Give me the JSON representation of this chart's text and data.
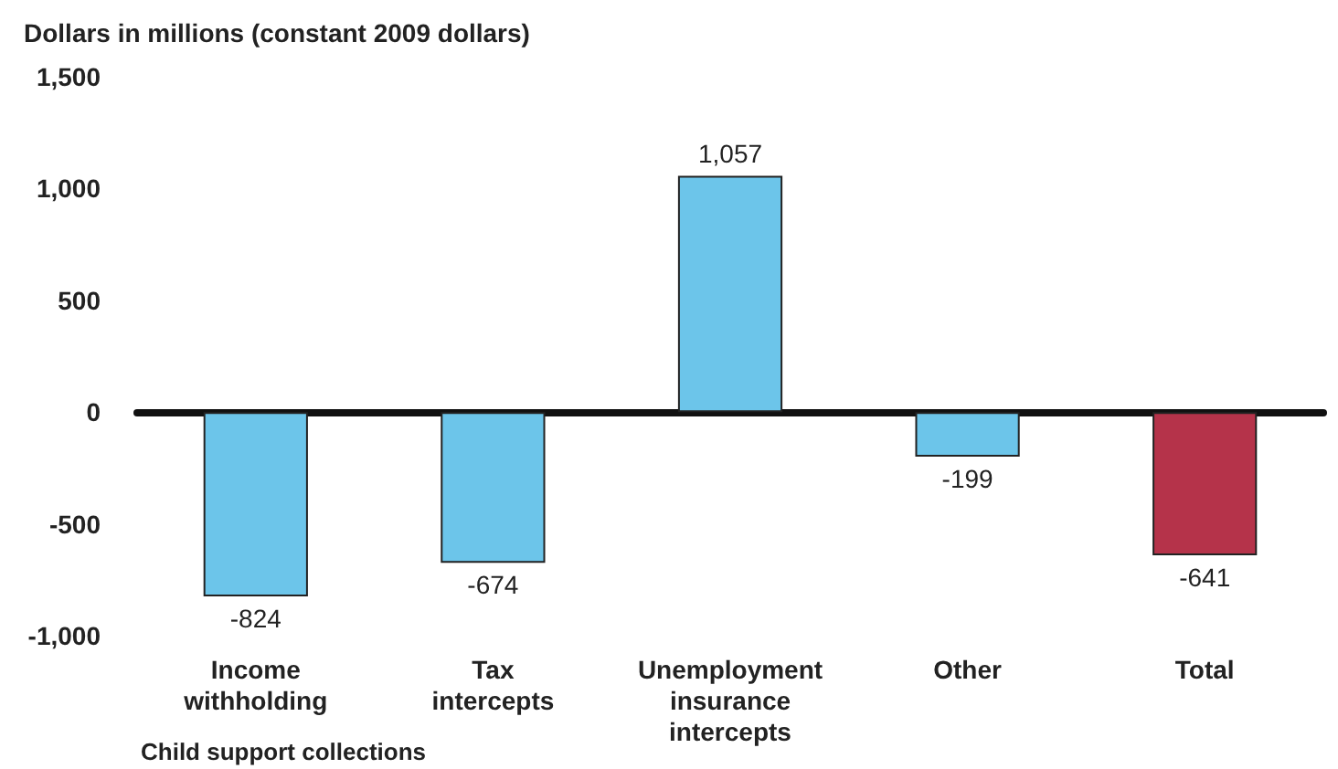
{
  "chart_data": {
    "type": "bar",
    "ylabel": "Dollars in millions (constant 2009 dollars)",
    "xlabel": "Child support collections",
    "categories": [
      "Income\nwithholding",
      "Tax\nintercepts",
      "Unemployment\ninsurance\nintercepts",
      "Other",
      "Total"
    ],
    "values": [
      -824,
      -674,
      1057,
      -199,
      -641
    ],
    "value_labels": [
      "-824",
      "-674",
      "1,057",
      "-199",
      "-641"
    ],
    "colors": [
      "#6cc5ea",
      "#6cc5ea",
      "#6cc5ea",
      "#6cc5ea",
      "#b5334a"
    ],
    "ylim": [
      -1000,
      1500
    ],
    "yticks": [
      {
        "value": -1000,
        "label": "-1,000"
      },
      -500,
      0,
      500,
      {
        "value": 1000,
        "label": "1,000"
      },
      {
        "value": 1500,
        "label": "1,500"
      }
    ]
  }
}
